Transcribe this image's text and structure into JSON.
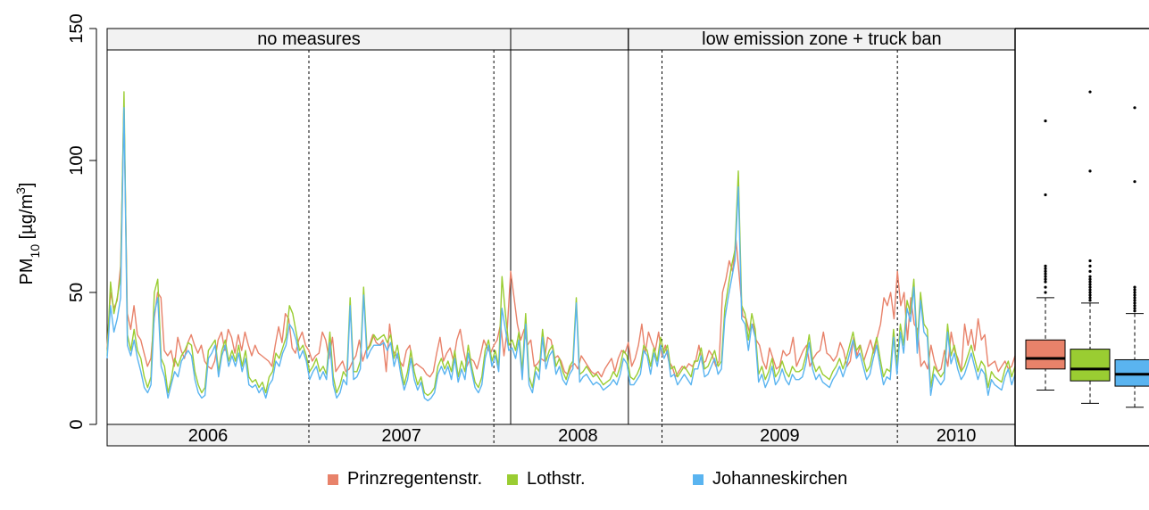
{
  "chart_data": {
    "type": "line",
    "ylabel": "PM10 [µg/m3]",
    "ylabel_main": "PM",
    "ylabel_sub": "10",
    "ylabel_unit": " [µg/m",
    "ylabel_sup": "3",
    "ylabel_close": "]",
    "ylim": [
      0,
      150
    ],
    "yticks": [
      0,
      50,
      100,
      150
    ],
    "ytick_labels": [
      "0",
      "50",
      "100",
      "150"
    ],
    "grid": false,
    "legend_position": "bottom",
    "top_strips": [
      {
        "label": "no measures",
        "x_start": "2006-01",
        "x_end": "2008-01"
      },
      {
        "label": "",
        "x_start": "2008-01",
        "x_end": "2008-08"
      },
      {
        "label": "low emission zone + truck ban",
        "x_start": "2008-08",
        "x_end": "2010-07"
      }
    ],
    "year_labels": [
      "2006",
      "2007",
      "2008",
      "2009",
      "2010"
    ],
    "phase_boundaries": [
      "2008-01",
      "2008-08"
    ],
    "dashed_markers": [
      "2007-01",
      "2007-12",
      "2008-10",
      "2009-12"
    ],
    "time_range": [
      "2006-01",
      "2010-07"
    ],
    "series": [
      {
        "name": "Prinzregentenstr.",
        "color": "#E8826A",
        "values": [
          29,
          50,
          44,
          47,
          60,
          121,
          42,
          36,
          45,
          34,
          32,
          27,
          22,
          25,
          40,
          50,
          48,
          28,
          26,
          28,
          22,
          33,
          28,
          25,
          31,
          34,
          30,
          27,
          30,
          24,
          22,
          21,
          24,
          32,
          35,
          28,
          36,
          33,
          27,
          34,
          28,
          35,
          30,
          26,
          30,
          27,
          26,
          25,
          24,
          22,
          30,
          37,
          31,
          42,
          40,
          29,
          27,
          32,
          35,
          30,
          28,
          24,
          26,
          27,
          35,
          32,
          25,
          33,
          20,
          22,
          24,
          20,
          21,
          24,
          26,
          32,
          24,
          28,
          30,
          34,
          31,
          30,
          32,
          20,
          38,
          28,
          26,
          24,
          22,
          28,
          30,
          22,
          23,
          22,
          21,
          19,
          18,
          20,
          27,
          33,
          24,
          27,
          29,
          24,
          32,
          36,
          28,
          22,
          25,
          24,
          21,
          26,
          32,
          29,
          27,
          30,
          32,
          38,
          26,
          36,
          58,
          48,
          38,
          32,
          36,
          30,
          32,
          22,
          23,
          25,
          24,
          33,
          32,
          25,
          26,
          24,
          20,
          19,
          22,
          23,
          21,
          26,
          24,
          22,
          20,
          19,
          20,
          18,
          21,
          23,
          25,
          20,
          25,
          28,
          27,
          31,
          22,
          25,
          30,
          38,
          27,
          35,
          31,
          28,
          35,
          26,
          30,
          24,
          22,
          18,
          20,
          22,
          21,
          23,
          22,
          24,
          30,
          23,
          24,
          28,
          26,
          22,
          24,
          50,
          55,
          62,
          58,
          70,
          56,
          41,
          40,
          35,
          38,
          32,
          30,
          24,
          21,
          29,
          25,
          21,
          22,
          28,
          26,
          27,
          33,
          22,
          25,
          28,
          30,
          22,
          25,
          27,
          28,
          35,
          27,
          26,
          24,
          26,
          31,
          28,
          22,
          24,
          33,
          26,
          30,
          24,
          28,
          32,
          27,
          33,
          38,
          48,
          45,
          50,
          40,
          58,
          45,
          50,
          32,
          48,
          38,
          36,
          22,
          24,
          21,
          30,
          24,
          20,
          21,
          28,
          22,
          35,
          28,
          25,
          20,
          38,
          30,
          36,
          28,
          40,
          32,
          34,
          22,
          23,
          24,
          20,
          22,
          24,
          21,
          22,
          26
        ]
      },
      {
        "name": "Lothstr.",
        "color": "#9ACD32",
        "values": [
          26,
          54,
          42,
          48,
          56,
          126,
          34,
          28,
          36,
          28,
          25,
          18,
          14,
          18,
          50,
          55,
          25,
          22,
          12,
          17,
          25,
          22,
          26,
          28,
          31,
          30,
          20,
          15,
          12,
          14,
          28,
          30,
          32,
          20,
          28,
          32,
          24,
          28,
          24,
          30,
          22,
          28,
          18,
          16,
          17,
          14,
          16,
          12,
          18,
          20,
          27,
          25,
          29,
          33,
          45,
          42,
          35,
          28,
          30,
          26,
          20,
          22,
          25,
          20,
          22,
          19,
          35,
          18,
          12,
          15,
          20,
          18,
          48,
          20,
          20,
          24,
          52,
          28,
          30,
          34,
          32,
          33,
          34,
          31,
          34,
          25,
          30,
          22,
          15,
          20,
          28,
          20,
          15,
          18,
          12,
          11,
          12,
          14,
          22,
          25,
          21,
          24,
          20,
          28,
          18,
          24,
          20,
          30,
          22,
          16,
          14,
          18,
          28,
          32,
          24,
          28,
          22,
          56,
          42,
          30,
          32,
          28,
          35,
          20,
          42,
          18,
          14,
          22,
          20,
          36,
          24,
          28,
          30,
          22,
          25,
          20,
          17,
          22,
          24,
          48,
          19,
          20,
          22,
          20,
          18,
          19,
          17,
          15,
          16,
          17,
          20,
          18,
          22,
          28,
          26,
          18,
          17,
          19,
          22,
          30,
          28,
          22,
          29,
          24,
          33,
          27,
          30,
          21,
          22,
          18,
          20,
          22,
          20,
          18,
          24,
          24,
          29,
          21,
          22,
          25,
          28,
          22,
          24,
          44,
          52,
          60,
          66,
          96,
          45,
          42,
          32,
          42,
          36,
          19,
          22,
          17,
          20,
          25,
          18,
          20,
          24,
          20,
          18,
          22,
          20,
          20,
          21,
          26,
          34,
          24,
          20,
          22,
          19,
          18,
          17,
          20,
          22,
          25,
          21,
          25,
          30,
          35,
          28,
          30,
          25,
          20,
          22,
          28,
          33,
          25,
          18,
          21,
          20,
          36,
          22,
          38,
          30,
          47,
          42,
          55,
          30,
          50,
          38,
          36,
          14,
          22,
          20,
          18,
          20,
          38,
          26,
          30,
          24,
          20,
          22,
          26,
          30,
          25,
          20,
          24,
          22,
          14,
          20,
          18,
          17,
          16,
          21,
          24,
          18,
          22
        ]
      },
      {
        "name": "Johanneskirchen",
        "color": "#5AB4F0",
        "values": [
          25,
          45,
          35,
          40,
          48,
          120,
          30,
          26,
          32,
          25,
          20,
          14,
          12,
          15,
          42,
          48,
          22,
          18,
          10,
          15,
          20,
          18,
          24,
          26,
          28,
          26,
          17,
          12,
          10,
          11,
          25,
          27,
          30,
          18,
          26,
          30,
          22,
          26,
          22,
          27,
          20,
          25,
          15,
          14,
          15,
          12,
          14,
          10,
          15,
          17,
          24,
          22,
          27,
          30,
          38,
          36,
          32,
          25,
          28,
          24,
          17,
          20,
          22,
          17,
          20,
          17,
          31,
          15,
          10,
          12,
          17,
          15,
          45,
          17,
          18,
          21,
          49,
          25,
          28,
          30,
          30,
          30,
          31,
          28,
          31,
          22,
          27,
          19,
          13,
          17,
          25,
          17,
          13,
          16,
          10,
          9,
          10,
          12,
          19,
          22,
          19,
          22,
          17,
          25,
          16,
          21,
          17,
          27,
          20,
          14,
          12,
          15,
          25,
          30,
          22,
          26,
          20,
          44,
          36,
          28,
          29,
          25,
          32,
          17,
          38,
          15,
          12,
          20,
          17,
          33,
          21,
          26,
          28,
          19,
          22,
          17,
          15,
          19,
          21,
          46,
          16,
          18,
          19,
          17,
          15,
          16,
          15,
          13,
          14,
          15,
          17,
          15,
          19,
          25,
          23,
          15,
          15,
          17,
          19,
          28,
          26,
          19,
          27,
          22,
          30,
          25,
          28,
          18,
          19,
          15,
          17,
          19,
          17,
          15,
          21,
          21,
          26,
          18,
          19,
          22,
          25,
          19,
          21,
          40,
          48,
          55,
          62,
          90,
          40,
          38,
          28,
          38,
          33,
          16,
          19,
          14,
          17,
          22,
          15,
          17,
          21,
          17,
          15,
          19,
          17,
          17,
          18,
          23,
          31,
          21,
          17,
          19,
          16,
          15,
          14,
          17,
          19,
          22,
          18,
          22,
          27,
          32,
          25,
          27,
          22,
          17,
          19,
          25,
          30,
          22,
          15,
          18,
          17,
          33,
          19,
          35,
          27,
          44,
          39,
          52,
          27,
          47,
          35,
          33,
          11,
          19,
          17,
          15,
          17,
          35,
          23,
          27,
          21,
          17,
          19,
          23,
          27,
          22,
          17,
          21,
          19,
          11,
          17,
          15,
          14,
          13,
          18,
          21,
          15,
          19
        ]
      }
    ],
    "boxplots": [
      {
        "name": "Prinzregentenstr.",
        "color": "#E8826A",
        "min": 13,
        "q1": 21,
        "median": 25,
        "q3": 32,
        "max": 48,
        "outliers": [
          50,
          52,
          54,
          55,
          56,
          57,
          58,
          59,
          60,
          87,
          115
        ]
      },
      {
        "name": "Lothstr.",
        "color": "#9ACD32",
        "min": 8,
        "q1": 16.5,
        "median": 21,
        "q3": 28.5,
        "max": 46,
        "outliers": [
          47,
          48,
          49,
          50,
          51,
          52,
          53,
          54,
          55,
          56,
          58,
          60,
          62,
          96,
          126
        ]
      },
      {
        "name": "Johanneskirchen",
        "color": "#5AB4F0",
        "min": 6.5,
        "q1": 14.5,
        "median": 19,
        "q3": 24.5,
        "max": 42,
        "outliers": [
          43,
          44,
          45,
          46,
          47,
          48,
          49,
          50,
          51,
          52,
          92,
          120
        ]
      }
    ]
  }
}
